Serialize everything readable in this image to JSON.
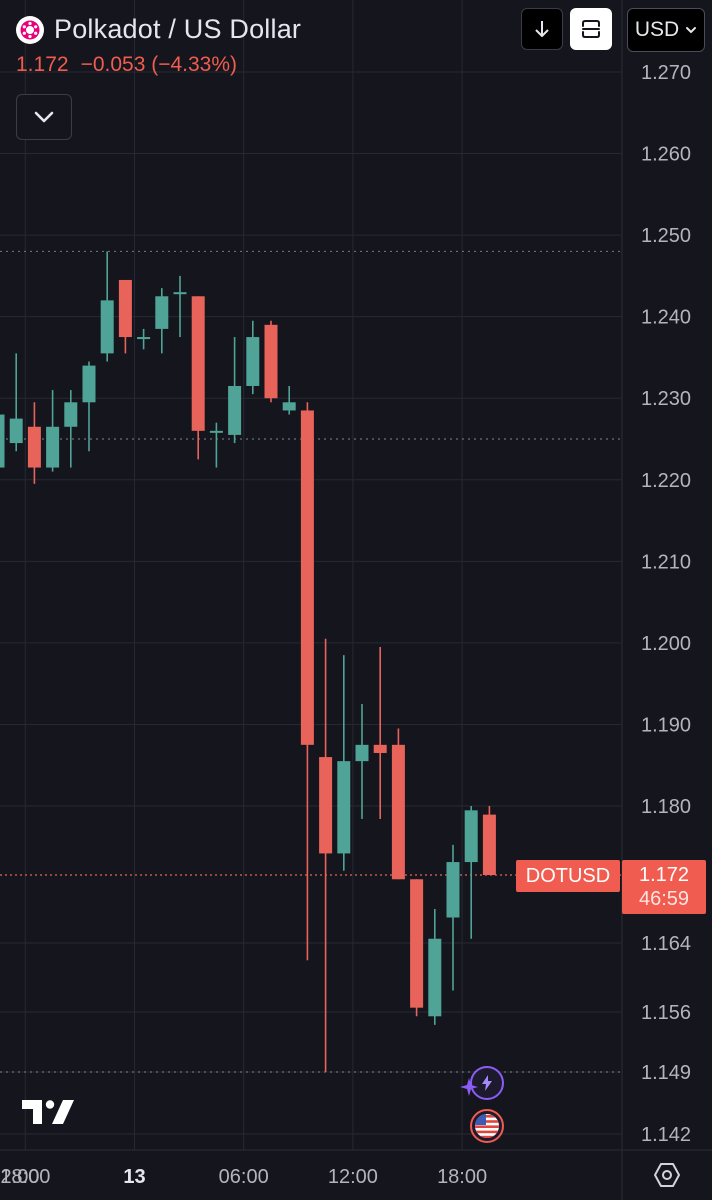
{
  "header": {
    "title": "Polkadot / US Dollar",
    "last_price": "1.172",
    "change": "−0.053",
    "change_pct": "(−4.33%)"
  },
  "toolbar": {
    "download_icon": "down-arrow-icon",
    "fullscreen_icon": "fullscreen-icon",
    "currency": "USD",
    "currency_caret": "⌄"
  },
  "price_label": {
    "symbol": "DOTUSD",
    "price": "1.172",
    "countdown": "46:59"
  },
  "colors": {
    "background": "#15161d",
    "grid": "#262833",
    "up": "#4fa397",
    "down": "#e8635a",
    "text": "#b2b5be",
    "accent": "#f05c4f"
  },
  "chart_data": {
    "type": "candlestick",
    "symbol": "DOTUSD",
    "y_ticks": [
      1.27,
      1.26,
      1.25,
      1.24,
      1.23,
      1.22,
      1.21,
      1.2,
      1.19,
      1.18,
      1.164,
      1.156,
      1.149,
      1.142
    ],
    "y_tick_labels": [
      "1.270",
      "1.260",
      "1.250",
      "1.240",
      "1.230",
      "1.220",
      "1.210",
      "1.200",
      "1.190",
      "1.180",
      "1.164",
      "1.156",
      "1.149",
      "1.142"
    ],
    "x_tick_labels": [
      "2:00",
      "18:00",
      "13",
      "06:00",
      "12:00",
      "18:00"
    ],
    "x_tick_bold": [
      false,
      false,
      true,
      false,
      false,
      false
    ],
    "x_tick_index": [
      -6.5,
      1.5,
      7.5,
      13.5,
      19.5,
      25.5
    ],
    "dotted_levels": [
      1.248,
      1.225,
      1.149
    ],
    "current_price": 1.172,
    "candles": [
      {
        "o": 1.2215,
        "h": 1.228,
        "l": 1.2215,
        "c": 1.228
      },
      {
        "o": 1.2245,
        "h": 1.2355,
        "l": 1.2235,
        "c": 1.2275
      },
      {
        "o": 1.2265,
        "h": 1.2295,
        "l": 1.2195,
        "c": 1.2215
      },
      {
        "o": 1.2215,
        "h": 1.231,
        "l": 1.221,
        "c": 1.2265
      },
      {
        "o": 1.2265,
        "h": 1.231,
        "l": 1.2215,
        "c": 1.2295
      },
      {
        "o": 1.2295,
        "h": 1.2345,
        "l": 1.2235,
        "c": 1.234
      },
      {
        "o": 1.2355,
        "h": 1.248,
        "l": 1.2345,
        "c": 1.242
      },
      {
        "o": 1.2445,
        "h": 1.2445,
        "l": 1.2355,
        "c": 1.2375
      },
      {
        "o": 1.2375,
        "h": 1.2385,
        "l": 1.236,
        "c": 1.2375
      },
      {
        "o": 1.2385,
        "h": 1.2435,
        "l": 1.2355,
        "c": 1.2425
      },
      {
        "o": 1.243,
        "h": 1.245,
        "l": 1.2375,
        "c": 1.243
      },
      {
        "o": 1.2425,
        "h": 1.2425,
        "l": 1.2225,
        "c": 1.226
      },
      {
        "o": 1.226,
        "h": 1.227,
        "l": 1.2215,
        "c": 1.226
      },
      {
        "o": 1.2255,
        "h": 1.2375,
        "l": 1.2245,
        "c": 1.2315
      },
      {
        "o": 1.2315,
        "h": 1.2395,
        "l": 1.2305,
        "c": 1.2375
      },
      {
        "o": 1.239,
        "h": 1.2395,
        "l": 1.2295,
        "c": 1.23
      },
      {
        "o": 1.2285,
        "h": 1.2315,
        "l": 1.228,
        "c": 1.2295
      },
      {
        "o": 1.2285,
        "h": 1.2295,
        "l": 1.162,
        "c": 1.1875
      },
      {
        "o": 1.186,
        "h": 1.2005,
        "l": 1.149,
        "c": 1.1745
      },
      {
        "o": 1.1745,
        "h": 1.1985,
        "l": 1.1725,
        "c": 1.1855
      },
      {
        "o": 1.1855,
        "h": 1.1925,
        "l": 1.1785,
        "c": 1.1875
      },
      {
        "o": 1.1875,
        "h": 1.1995,
        "l": 1.1785,
        "c": 1.1865
      },
      {
        "o": 1.1875,
        "h": 1.1895,
        "l": 1.1715,
        "c": 1.1715
      },
      {
        "o": 1.1715,
        "h": 1.1715,
        "l": 1.1555,
        "c": 1.1565
      },
      {
        "o": 1.1555,
        "h": 1.168,
        "l": 1.1545,
        "c": 1.1645
      },
      {
        "o": 1.167,
        "h": 1.1755,
        "l": 1.1585,
        "c": 1.1735
      },
      {
        "o": 1.1735,
        "h": 1.18,
        "l": 1.1645,
        "c": 1.1795
      },
      {
        "o": 1.179,
        "h": 1.18,
        "l": 1.172,
        "c": 1.172
      }
    ]
  }
}
